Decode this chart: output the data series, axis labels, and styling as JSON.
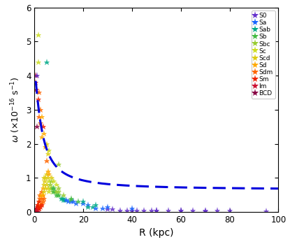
{
  "xlabel": "R (kpc)",
  "xlim": [
    0,
    100
  ],
  "ylim": [
    0,
    6
  ],
  "yticks": [
    0,
    1,
    2,
    3,
    4,
    5,
    6
  ],
  "xticks": [
    0,
    20,
    40,
    60,
    80,
    100
  ],
  "galaxy_types": [
    "S0",
    "Sa",
    "Sab",
    "Sb",
    "Sbc",
    "Sc",
    "Scd",
    "Sd",
    "Sdm",
    "Sm",
    "Im",
    "BCD"
  ],
  "type_colors": [
    "#6633cc",
    "#1a66ff",
    "#00aa88",
    "#44bb44",
    "#99cc33",
    "#ccdd22",
    "#ddcc11",
    "#ffaa00",
    "#ff6600",
    "#ee2200",
    "#cc1133",
    "#880044"
  ],
  "figsize": [
    4.15,
    3.46
  ],
  "dpi": 100,
  "scatter_R": [
    0.3,
    0.5,
    0.5,
    0.7,
    0.8,
    0.8,
    1.0,
    1.0,
    1.0,
    1.0,
    1.2,
    1.2,
    1.3,
    1.5,
    1.5,
    1.5,
    1.5,
    1.7,
    1.8,
    2.0,
    2.0,
    2.0,
    2.0,
    2.2,
    2.3,
    2.5,
    2.5,
    2.5,
    2.7,
    3.0,
    3.0,
    3.0,
    3.0,
    3.0,
    3.2,
    3.5,
    3.5,
    3.5,
    3.8,
    4.0,
    4.0,
    4.0,
    4.2,
    4.5,
    4.5,
    4.5,
    5.0,
    5.0,
    5.0,
    5.5,
    5.5,
    5.5,
    6.0,
    6.0,
    6.0,
    6.5,
    6.5,
    7.0,
    7.0,
    7.5,
    7.5,
    8.0,
    8.0,
    8.5,
    9.0,
    9.0,
    9.5,
    10.0,
    10.0,
    10.0,
    11.0,
    11.5,
    12.0,
    12.5,
    13.0,
    14.0,
    15.0,
    15.0,
    16.0,
    17.0,
    18.0,
    20.0,
    22.0,
    22.0,
    24.0,
    25.0,
    28.0,
    30.0,
    32.0,
    35.0,
    38.0,
    40.0,
    42.0,
    45.0,
    48.0,
    50.0,
    55.0,
    60.0,
    65.0,
    70.0,
    75.0,
    80.0,
    95.0,
    0.5,
    0.5,
    0.8,
    1.0,
    1.2,
    1.5,
    1.7,
    2.0,
    2.5,
    3.0,
    3.5,
    4.0,
    5.0,
    5.5,
    6.0,
    7.0,
    8.0,
    9.0,
    10.0,
    12.0,
    15.0,
    20.0,
    25.0,
    30.0,
    40.0,
    50.0,
    60.0,
    70.0,
    1.5,
    5.0
  ],
  "scatter_omega": [
    0.05,
    0.05,
    4.0,
    0.1,
    0.05,
    0.1,
    0.05,
    4.0,
    2.5,
    0.1,
    0.1,
    0.15,
    0.2,
    5.2,
    0.15,
    3.3,
    0.2,
    0.2,
    0.3,
    0.1,
    2.8,
    3.5,
    0.3,
    0.4,
    0.5,
    0.2,
    2.6,
    3.0,
    0.5,
    0.25,
    0.4,
    0.6,
    2.2,
    2.8,
    0.5,
    0.5,
    0.7,
    2.5,
    0.6,
    0.8,
    1.0,
    2.3,
    0.9,
    0.7,
    1.0,
    1.9,
    0.8,
    1.1,
    2.0,
    0.7,
    1.0,
    1.7,
    0.6,
    0.9,
    1.8,
    0.7,
    0.8,
    0.7,
    0.9,
    0.6,
    0.7,
    0.6,
    0.7,
    0.6,
    0.5,
    0.6,
    0.5,
    0.5,
    0.6,
    1.4,
    0.4,
    0.4,
    0.35,
    0.35,
    0.35,
    0.3,
    0.3,
    0.35,
    0.3,
    0.25,
    0.3,
    0.25,
    0.2,
    0.15,
    0.15,
    0.1,
    0.1,
    0.08,
    0.08,
    0.05,
    0.05,
    0.05,
    0.05,
    0.05,
    0.05,
    0.05,
    0.05,
    0.05,
    0.05,
    0.05,
    0.05,
    0.05,
    0.02,
    3.8,
    0.0,
    3.6,
    0.0,
    0.0,
    0.1,
    0.15,
    0.1,
    0.15,
    0.2,
    0.3,
    0.4,
    1.5,
    1.2,
    1.1,
    1.0,
    0.9,
    0.8,
    0.7,
    0.5,
    0.4,
    0.3,
    0.2,
    0.15,
    0.1,
    0.05,
    0.05,
    0.02,
    4.4,
    4.4
  ],
  "scatter_tidx": [
    10,
    10,
    10,
    10,
    10,
    10,
    10,
    0,
    11,
    10,
    10,
    10,
    9,
    5,
    9,
    9,
    9,
    9,
    8,
    9,
    8,
    8,
    9,
    8,
    8,
    8,
    8,
    8,
    7,
    8,
    8,
    8,
    7,
    7,
    7,
    7,
    7,
    9,
    6,
    6,
    6,
    7,
    6,
    6,
    6,
    7,
    6,
    6,
    6,
    6,
    6,
    6,
    5,
    5,
    5,
    5,
    4,
    4,
    4,
    4,
    3,
    3,
    3,
    3,
    3,
    4,
    3,
    3,
    4,
    4,
    2,
    2,
    2,
    2,
    1,
    1,
    1,
    3,
    1,
    1,
    3,
    1,
    1,
    2,
    2,
    1,
    1,
    0,
    0,
    0,
    0,
    0,
    0,
    0,
    0,
    0,
    0,
    0,
    0,
    0,
    0,
    0,
    0,
    10,
    10,
    9,
    10,
    10,
    10,
    9,
    9,
    9,
    9,
    8,
    8,
    8,
    7,
    7,
    6,
    5,
    5,
    4,
    4,
    3,
    2,
    2,
    1,
    1,
    0,
    0,
    0,
    5,
    2
  ],
  "curve_params": {
    "A": 3.6,
    "lam": 22.0,
    "c": 0.68
  }
}
